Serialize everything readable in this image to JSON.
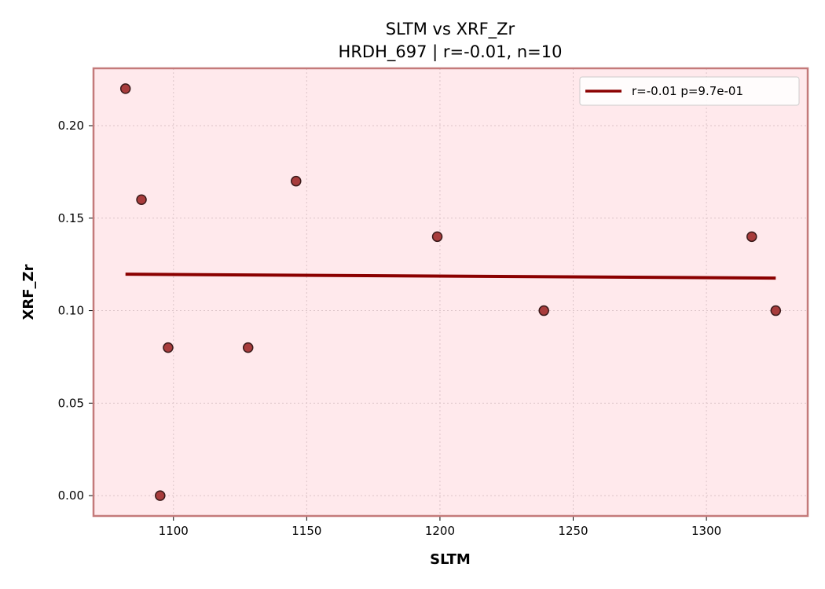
{
  "chart_data": {
    "type": "scatter",
    "title": "SLTM vs XRF_Zr",
    "subtitle": "HRDH_697 | r=-0.01, n=10",
    "xlabel": "SLTM",
    "ylabel": "XRF_Zr",
    "xlim": [
      1070,
      1338
    ],
    "ylim": [
      -0.011,
      0.231
    ],
    "xticks": [
      1100,
      1150,
      1200,
      1250,
      1300
    ],
    "yticks": [
      0.0,
      0.05,
      0.1,
      0.15,
      0.2
    ],
    "xtick_labels": [
      "1100",
      "1150",
      "1200",
      "1250",
      "1300"
    ],
    "ytick_labels": [
      "0.00",
      "0.05",
      "0.10",
      "0.15",
      "0.20"
    ],
    "grid": true,
    "legend_position": "top-right",
    "points": [
      {
        "x": 1082,
        "y": 0.22
      },
      {
        "x": 1088,
        "y": 0.16
      },
      {
        "x": 1095,
        "y": 0.0
      },
      {
        "x": 1098,
        "y": 0.08
      },
      {
        "x": 1128,
        "y": 0.08
      },
      {
        "x": 1146,
        "y": 0.17
      },
      {
        "x": 1199,
        "y": 0.14
      },
      {
        "x": 1239,
        "y": 0.1
      },
      {
        "x": 1317,
        "y": 0.14
      },
      {
        "x": 1326,
        "y": 0.1
      }
    ],
    "fit_line": {
      "label": "r=-0.01  p=9.7e-01",
      "x": [
        1082,
        1326
      ],
      "y": [
        0.1197,
        0.1176
      ]
    },
    "colors": {
      "background": "#ffe9ec",
      "frame": "#c47a7a",
      "point_fill": "#a83c3c",
      "point_edge": "#3a1a1a",
      "fit_line": "#8b0000",
      "grid": "#dcc4c8"
    }
  }
}
